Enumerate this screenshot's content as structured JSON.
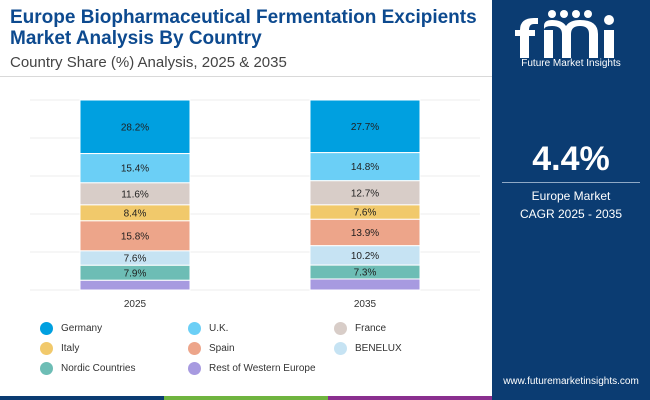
{
  "header": {
    "title": "Europe Biopharmaceutical Fermentation Excipients Market Analysis By Country",
    "subtitle": "Country Share (%) Analysis, 2025 & 2035"
  },
  "brand": {
    "name": "Future Market Insights",
    "url": "www.futuremarketinsights.com",
    "colors": {
      "panel": "#0b3c72",
      "title": "#0d4a8f"
    }
  },
  "callout": {
    "value": "4.4%",
    "line1": "Europe Market",
    "line2": "CAGR 2025 - 2035"
  },
  "chart_data": {
    "type": "bar",
    "stacked": true,
    "categories": [
      "2025",
      "2035"
    ],
    "series": [
      {
        "name": "Germany",
        "color": "#00a0e0",
        "values": [
          28.2,
          27.7
        ],
        "labels": [
          "28.2%",
          "27.7%"
        ]
      },
      {
        "name": "U.K.",
        "color": "#6bcff6",
        "values": [
          15.4,
          14.8
        ],
        "labels": [
          "15.4%",
          "14.8%"
        ]
      },
      {
        "name": "France",
        "color": "#d8cdc8",
        "values": [
          11.6,
          12.7
        ],
        "labels": [
          "11.6%",
          "12.7%"
        ]
      },
      {
        "name": "Italy",
        "color": "#f1c96b",
        "values": [
          8.4,
          7.6
        ],
        "labels": [
          "8.4%",
          "7.6%"
        ]
      },
      {
        "name": "Spain",
        "color": "#eda58a",
        "values": [
          15.8,
          13.9
        ],
        "labels": [
          "15.8%",
          "13.9%"
        ]
      },
      {
        "name": "BENELUX",
        "color": "#c6e3f3",
        "values": [
          7.6,
          10.2
        ],
        "labels": [
          "7.6%",
          "10.2%"
        ]
      },
      {
        "name": "Nordic Countries",
        "color": "#6dbdb5",
        "values": [
          7.9,
          7.3
        ],
        "labels": [
          "7.9%",
          "7.3%"
        ]
      },
      {
        "name": "Rest of Western Europe",
        "color": "#a79ae0",
        "values": [
          5.1,
          5.8
        ],
        "labels": [
          "",
          ""
        ]
      }
    ],
    "grid": true,
    "legend_position": "bottom"
  }
}
